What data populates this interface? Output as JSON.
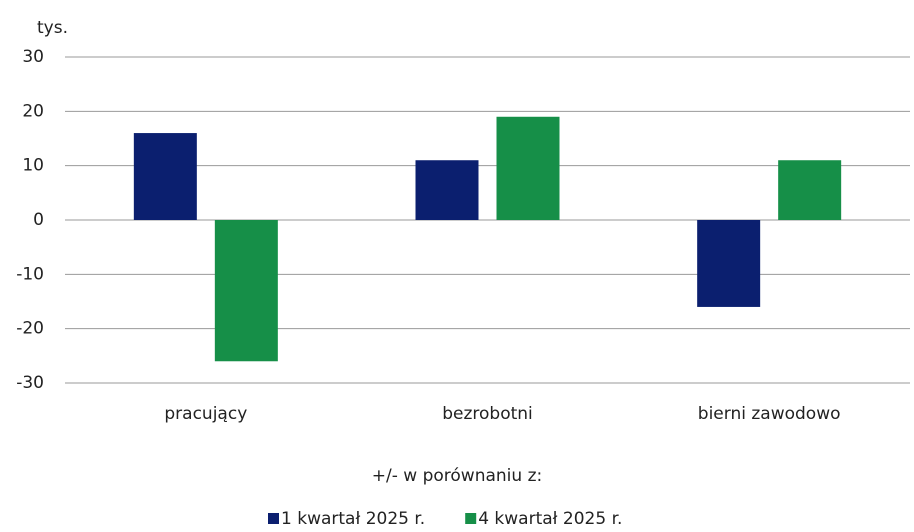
{
  "chart_data": {
    "type": "bar",
    "y_label": "tys.",
    "categories": [
      "pracujący",
      "bezrobotni",
      "bierni zawodowo"
    ],
    "series": [
      {
        "name": "1 kwartał 2025 r.",
        "color": "#0b1f6f",
        "values": [
          16,
          11,
          -16
        ]
      },
      {
        "name": "4 kwartał 2025 r.",
        "color": "#168f48",
        "values": [
          -26,
          19,
          11
        ]
      }
    ],
    "ylim": [
      -30,
      30
    ],
    "yticks": [
      -30,
      -20,
      -10,
      0,
      10,
      20,
      30
    ],
    "grid": true,
    "legend_title": "+/- w porównaniu z:",
    "legend": "bottom"
  }
}
